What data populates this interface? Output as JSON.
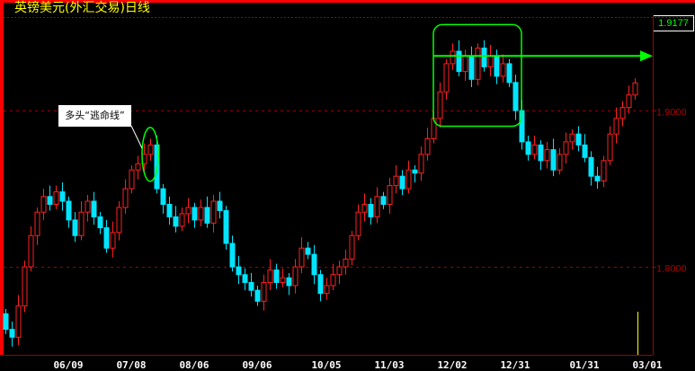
{
  "title": "英镑美元(外汇交易)日线",
  "last_price_label": "1.9177",
  "annotation_text": "多头“逃命线”",
  "colors": {
    "up": "#ff2020",
    "down": "#00e5ff",
    "frame": "#a00000",
    "axis_text": "#b00000",
    "annotation": "#00ff00",
    "title": "#ffff00",
    "cursor": "#ffff00"
  },
  "chart_data": {
    "type": "candlestick",
    "ylim": [
      1.7437,
      1.961
    ],
    "y_ticks": [
      {
        "value": 1.9,
        "label": "1.9000"
      },
      {
        "value": 1.8,
        "label": "1.8000"
      }
    ],
    "x_ticks": [
      {
        "index": 10,
        "label": "06/09"
      },
      {
        "index": 20,
        "label": "07/08"
      },
      {
        "index": 30,
        "label": "08/06"
      },
      {
        "index": 40,
        "label": "09/06"
      },
      {
        "index": 51,
        "label": "10/05"
      },
      {
        "index": 61,
        "label": "11/03"
      },
      {
        "index": 71,
        "label": "12/02"
      },
      {
        "index": 81,
        "label": "12/31"
      },
      {
        "index": 92,
        "label": "01/31"
      },
      {
        "index": 102,
        "label": "03/01"
      }
    ],
    "closes": [
      1.76,
      1.755,
      1.775,
      1.8,
      1.82,
      1.835,
      1.845,
      1.84,
      1.848,
      1.842,
      1.83,
      1.82,
      1.835,
      1.842,
      1.832,
      1.825,
      1.812,
      1.822,
      1.838,
      1.85,
      1.862,
      1.866,
      1.872,
      1.878,
      1.85,
      1.84,
      1.832,
      1.826,
      1.834,
      1.838,
      1.83,
      1.838,
      1.828,
      1.842,
      1.836,
      1.815,
      1.8,
      1.795,
      1.79,
      1.785,
      1.778,
      1.79,
      1.798,
      1.79,
      1.793,
      1.788,
      1.8,
      1.812,
      1.808,
      1.795,
      1.783,
      1.788,
      1.795,
      1.8,
      1.805,
      1.82,
      1.835,
      1.84,
      1.832,
      1.845,
      1.84,
      1.852,
      1.858,
      1.85,
      1.862,
      1.86,
      1.872,
      1.882,
      1.895,
      1.912,
      1.93,
      1.938,
      1.925,
      1.935,
      1.92,
      1.94,
      1.928,
      1.935,
      1.922,
      1.93,
      1.918,
      1.9,
      1.88,
      1.872,
      1.878,
      1.868,
      1.875,
      1.862,
      1.872,
      1.88,
      1.885,
      1.878,
      1.87,
      1.858,
      1.855,
      1.868,
      1.885,
      1.895,
      1.902,
      1.91,
      1.9177
    ],
    "opens_first": 1.77,
    "annotations": [
      {
        "type": "ellipse",
        "index": 23,
        "price": 1.872
      },
      {
        "type": "box",
        "from_index": 69,
        "to_index": 81,
        "price_range": [
          1.89,
          1.955
        ]
      },
      {
        "type": "arrow",
        "from_index": 69,
        "price": 1.935
      }
    ]
  }
}
